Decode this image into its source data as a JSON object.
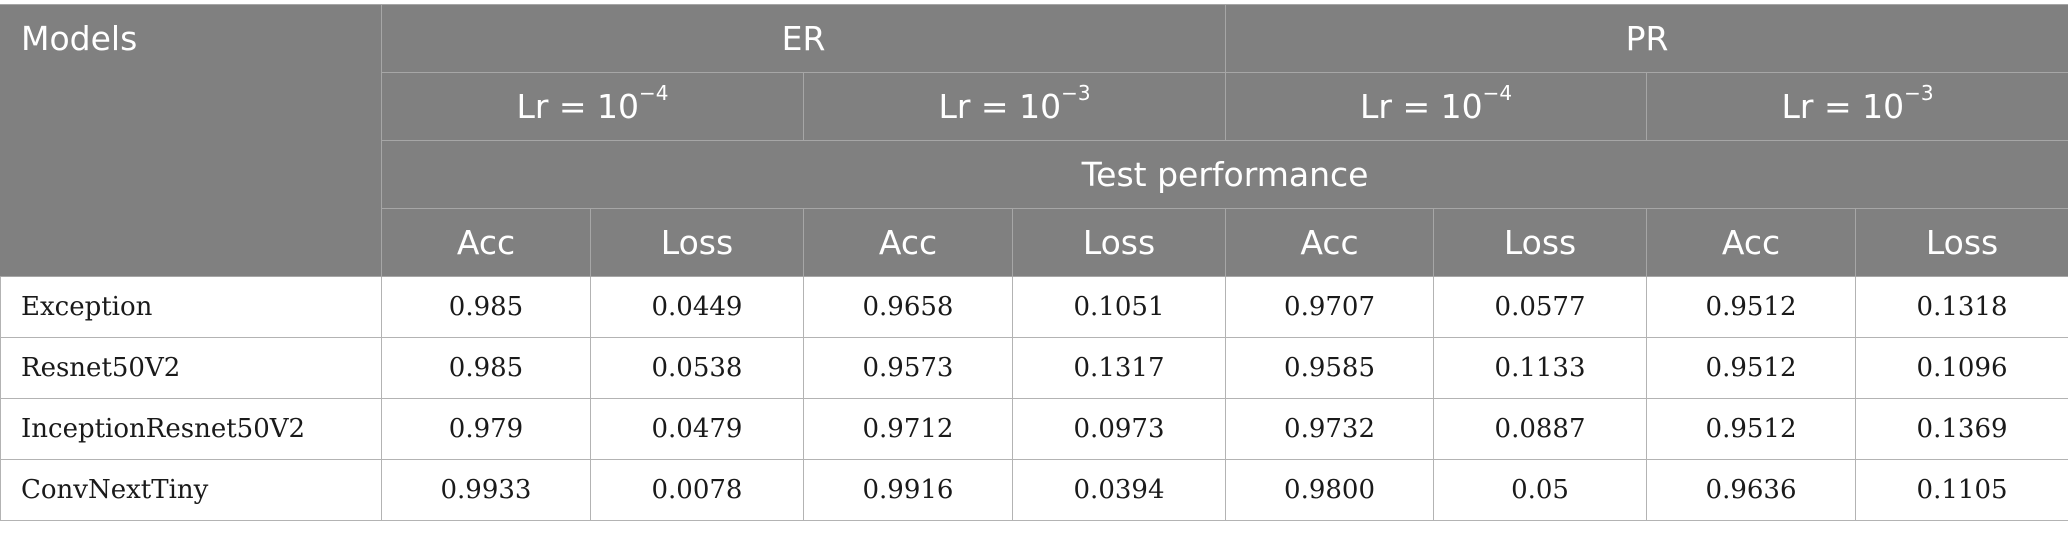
{
  "header": {
    "models": "Models",
    "groups": [
      "ER",
      "PR"
    ],
    "lr_prefix": "Lr = 10",
    "lr_exponents": [
      "−4",
      "−3",
      "−4",
      "−3"
    ],
    "test_performance": "Test performance",
    "metrics": [
      "Acc",
      "Loss",
      "Acc",
      "Loss",
      "Acc",
      "Loss",
      "Acc",
      "Loss"
    ]
  },
  "rows": [
    {
      "model": "Exception",
      "values": [
        "0.985",
        "0.0449",
        "0.9658",
        "0.1051",
        "0.9707",
        "0.0577",
        "0.9512",
        "0.1318"
      ]
    },
    {
      "model": "Resnet50V2",
      "values": [
        "0.985",
        "0.0538",
        "0.9573",
        "0.1317",
        "0.9585",
        "0.1133",
        "0.9512",
        "0.1096"
      ]
    },
    {
      "model": "InceptionResnet50V2",
      "values": [
        "0.979",
        "0.0479",
        "0.9712",
        "0.0973",
        "0.9732",
        "0.0887",
        "0.9512",
        "0.1369"
      ]
    },
    {
      "model": "ConvNextTiny",
      "values": [
        "0.9933",
        "0.0078",
        "0.9916",
        "0.0394",
        "0.9800",
        "0.05",
        "0.9636",
        "0.1105"
      ]
    }
  ],
  "colors": {
    "header_bg": "#808080",
    "header_text": "#ffffff",
    "grid": "#b3b3b3"
  }
}
